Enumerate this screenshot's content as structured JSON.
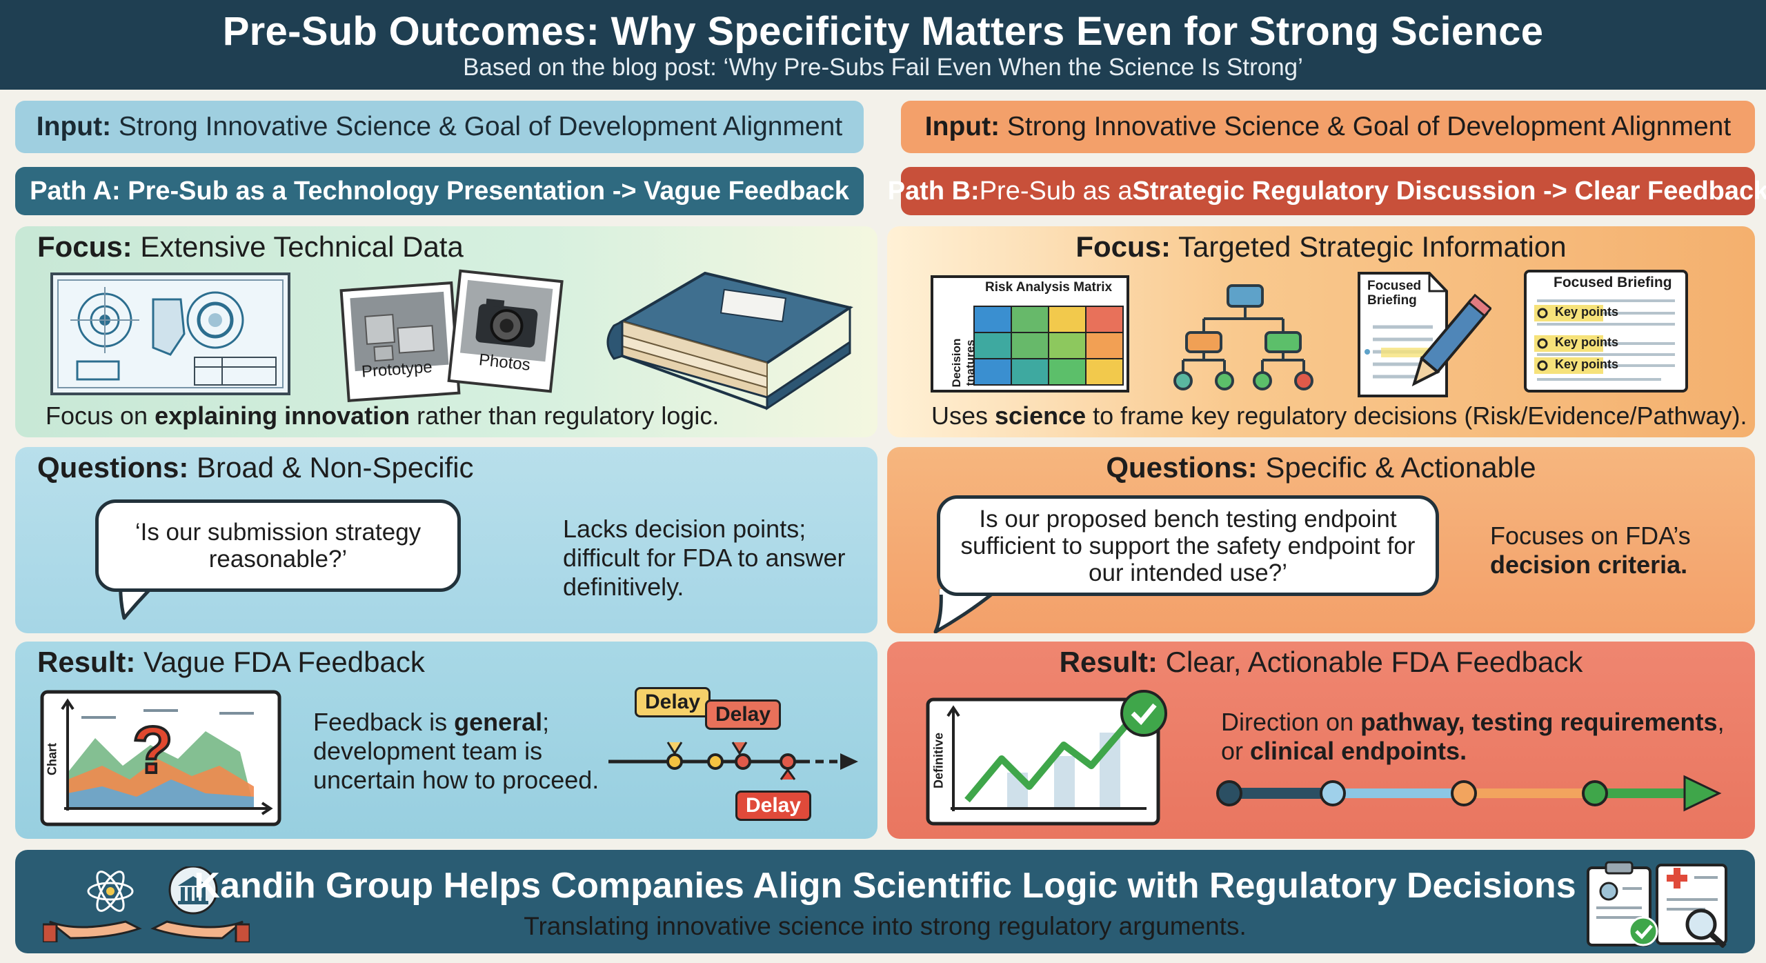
{
  "header": {
    "title": "Pre-Sub Outcomes: Why Specificity Matters Even for Strong Science",
    "subtitle": "Based on the blog post: ‘Why Pre-Subs Fail Even When the Science Is Strong’"
  },
  "path_a": {
    "input_label": "Input:",
    "input_text": "Strong Innovative Science & Goal of Development Alignment",
    "path_title": "Path A: Pre-Sub as a Technology Presentation -> Vague Feedback",
    "focus_label": "Focus:",
    "focus_text": "Extensive Technical Data",
    "photo_1": "Prototype",
    "photo_2": "Photos",
    "focus_desc_pre": "Focus on ",
    "focus_desc_bold": "explaining innovation",
    "focus_desc_post": " rather than regulatory logic.",
    "questions_label": "Questions:",
    "questions_text": "Broad & Non-Specific",
    "question_quote": "‘Is our submission strategy reasonable?’",
    "question_note": "Lacks decision points; difficult for FDA to answer definitively.",
    "result_label": "Result:",
    "result_text": "Vague FDA Feedback",
    "chart_axis": "Chart",
    "result_desc_pre": "Feedback is ",
    "result_desc_bold": "general",
    "result_desc_post": "; development team is uncertain how to proceed.",
    "delay_1": "Delay",
    "delay_2": "Delay",
    "delay_3": "Delay"
  },
  "path_b": {
    "input_label": "Input:",
    "input_text": "Strong Innovative Science & Goal of Development Alignment",
    "path_label": "Path B:",
    "path_pre": " Pre-Sub as a ",
    "path_bold": "Strategic Regulatory Discussion -> Clear Feedback",
    "focus_label": "Focus:",
    "focus_text": "Targeted Strategic Information",
    "matrix_title": "Risk Analysis Matrix",
    "matrix_axis": "Decision tnatures",
    "brief_small_title": "Focused Briefing",
    "brief_title": "Focused Briefing",
    "key_points": [
      "Key points",
      "Key points",
      "Key points"
    ],
    "focus_desc_pre": "Uses ",
    "focus_desc_bold": "science",
    "focus_desc_post": " to frame key regulatory decisions (Risk/Evidence/Pathway).",
    "questions_label": "Questions:",
    "questions_text": "Specific & Actionable",
    "question_quote": "Is our proposed bench testing endpoint sufficient to support the safety endpoint for our intended use?’",
    "question_note_pre": "Focuses on FDA’s ",
    "question_note_bold": "decision criteria.",
    "result_label": "Result:",
    "result_text": "Clear, Actionable FDA Feedback",
    "chart_axis": "Definitive",
    "result_desc_pre": "Direction on ",
    "result_desc_bold1": "pathway, testing requirements",
    "result_desc_mid": ", or ",
    "result_desc_bold2": "clinical endpoints."
  },
  "footer": {
    "title": "Kandih Group Helps Companies Align Scientific Logic with Regulatory Decisions",
    "subtitle": "Translating innovative science into strong regulatory arguments."
  },
  "colors": {
    "header": "#1f3f52",
    "path_a": "#2f6a80",
    "path_b": "#c8503a",
    "footer": "#2a5c73"
  }
}
